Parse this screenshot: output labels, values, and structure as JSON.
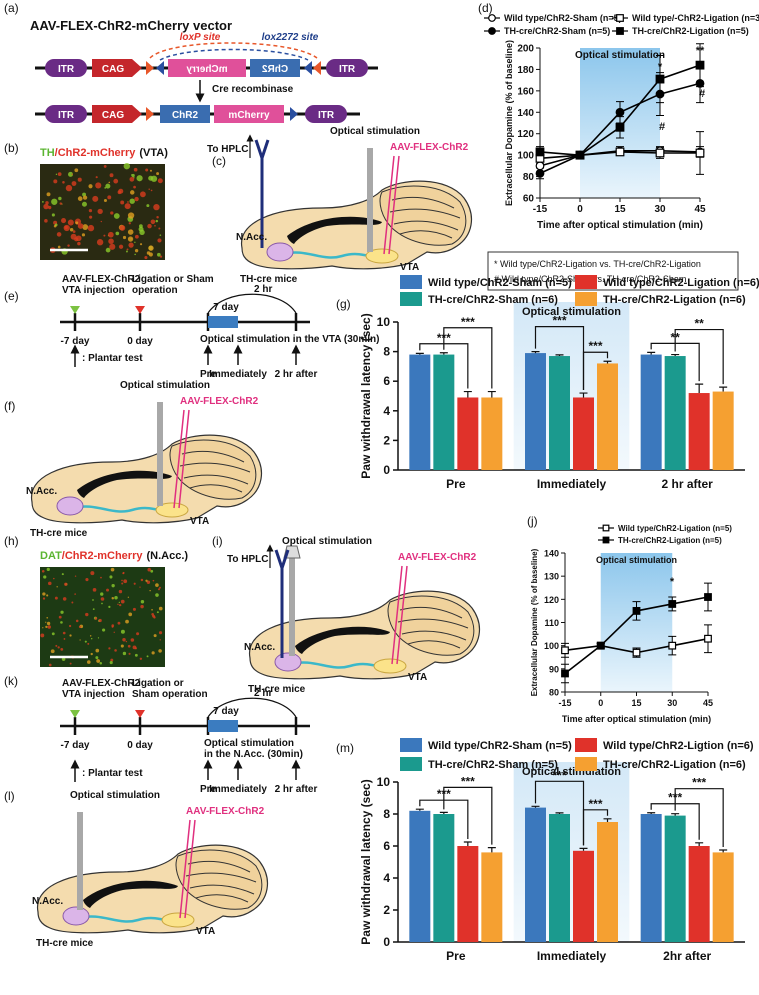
{
  "panel_labels": [
    "(a)",
    "(b)",
    "(c)",
    "(d)",
    "(e)",
    "(f)",
    "(g)",
    "(h)",
    "(i)",
    "(j)",
    "(k)",
    "(l)",
    "(m)"
  ],
  "vector": {
    "title": "AAV-FLEX-ChR2-mCherry vector",
    "itr": "ITR",
    "cag": "CAG",
    "chr2": "ChR2",
    "mcherry": "mCherry",
    "loxp": "loxP site",
    "lox2272": "lox2272 site",
    "cre": "Cre recombinase"
  },
  "images": [
    {
      "title": [
        "TH",
        "/ChR2-mCherry",
        "(VTA)"
      ]
    },
    {
      "title": [
        "DAT",
        "/ChR2-mCherry",
        "(N.Acc.)"
      ]
    }
  ],
  "brains": [
    {
      "hplc": "To HPLC",
      "optical": "Optical stimulation",
      "virus": "AAV-FLEX-ChR2",
      "nacc": "N.Acc.",
      "vta": "VTA",
      "mice": "TH-cre mice"
    },
    {
      "optical": "Optical stimulation",
      "virus": "AAV-FLEX-ChR2",
      "nacc": "N.Acc.",
      "vta": "VTA",
      "mice": "TH-cre mice"
    },
    {
      "hplc": "To HPLC",
      "optical": "Optical stimulation",
      "virus": "AAV-FLEX-ChR2",
      "nacc": "N.Acc.",
      "vta": "VTA",
      "mice": "TH-cre mice"
    },
    {
      "optical": "Optical stimulation",
      "virus": "AAV-FLEX-ChR2",
      "nacc": "N.Acc.",
      "vta": "VTA",
      "mice": "TH-cre mice"
    }
  ],
  "timelines": [
    {
      "injection": [
        "AAV-FLEX-ChR2",
        "VTA injection"
      ],
      "operation": [
        "Ligation or Sham",
        "operation"
      ],
      "day7": "7 day",
      "hr2": "2 hr",
      "start": "-7 day",
      "zero": "0 day",
      "stim": [
        "Optical stimulation in the VTA (30min)"
      ],
      "plantar": ": Plantar test",
      "times": [
        "Pre",
        "Immediately",
        "2 hr after"
      ]
    },
    {
      "injection": [
        "AAV-FLEX-ChR2",
        "VTA injection"
      ],
      "operation": [
        "Ligation or",
        "Sham operation"
      ],
      "day7": "7 day",
      "hr2": "2 hr",
      "start": "-7 day",
      "zero": "0 day",
      "stim": [
        "Optical stimulation",
        "in the N.Acc. (30min)"
      ],
      "plantar": ": Plantar test",
      "times": [
        "Pre",
        "Immediately",
        "2 hr after"
      ]
    }
  ],
  "chart_data": [
    {
      "type": "line",
      "x": [
        -15,
        0,
        15,
        30,
        45
      ],
      "xlim": [
        -15,
        45
      ],
      "xticks": [
        -15,
        0,
        15,
        30,
        45
      ],
      "ylim": [
        60,
        200
      ],
      "yticks": [
        60,
        80,
        100,
        120,
        140,
        160,
        180,
        200
      ],
      "xlabel": "Time after optical stimulation (min)",
      "ylabel": "Extracellular Dopamine (% of baseline)",
      "shade": [
        0,
        30
      ],
      "shade_label": "Optical stimulation",
      "series": [
        {
          "name": "Wild type/ChR2-Sham (n=5)",
          "marker": "circle",
          "filled": false,
          "color": "#000000",
          "values": [
            90,
            100,
            104,
            104,
            103
          ],
          "errors": [
            6,
            1,
            4,
            4,
            5
          ]
        },
        {
          "name": "TH-cre/ChR2-Sham (n=5)",
          "marker": "circle",
          "filled": true,
          "color": "#000000",
          "values": [
            83,
            100,
            140,
            157,
            167
          ],
          "errors": [
            5,
            1,
            10,
            20,
            18
          ]
        },
        {
          "name": "Wild type/-ChR2-Ligation (n=3)",
          "marker": "square",
          "filled": false,
          "color": "#000000",
          "values": [
            97,
            100,
            103,
            102,
            102
          ],
          "errors": [
            5,
            1,
            3,
            5,
            20
          ]
        },
        {
          "name": "TH-cre/ChR2-Ligation (n=5)",
          "marker": "square",
          "filled": true,
          "color": "#000000",
          "values": [
            103,
            100,
            126,
            171,
            184
          ],
          "errors": [
            5,
            1,
            10,
            22,
            20
          ]
        }
      ],
      "annotations": [
        "*",
        "**",
        "#",
        "#"
      ],
      "notes": [
        "* Wild type/ChR2-Ligation vs.  TH-cre/ChR2-Ligation",
        "# Wild type/ChR2-Sham vs.  TH-cre/ChR2-Sham"
      ]
    },
    {
      "type": "bar",
      "categories": [
        "Pre",
        "Immediately",
        "2 hr after"
      ],
      "ylim": [
        0,
        10
      ],
      "yticks": [
        0,
        2,
        4,
        6,
        8,
        10
      ],
      "ylabel": "Paw withdrawal latency (sec)",
      "shade_label": "Optical stimulation",
      "series": [
        {
          "name": "Wild type/ChR2-Sham (n=5)",
          "color": "#3b78bd",
          "values": [
            7.8,
            7.9,
            7.8
          ],
          "errors": [
            0.08,
            0.1,
            0.15
          ]
        },
        {
          "name": "TH-cre/ChR2-Sham (n=6)",
          "color": "#1b9a8e",
          "values": [
            7.8,
            7.7,
            7.7
          ],
          "errors": [
            0.12,
            0.08,
            0.1
          ]
        },
        {
          "name": "Wild type/ChR2-Ligation (n=6)",
          "color": "#e0322a",
          "values": [
            4.9,
            4.9,
            5.2
          ],
          "errors": [
            0.4,
            0.3,
            0.6
          ]
        },
        {
          "name": "TH-cre/ChR2-Ligation (n=6)",
          "color": "#f5a031",
          "values": [
            4.9,
            7.2,
            5.3
          ],
          "errors": [
            0.4,
            0.15,
            0.3
          ]
        }
      ],
      "annotations": [
        "***",
        "***",
        "***",
        "***",
        "**",
        "**"
      ]
    },
    {
      "type": "line",
      "x": [
        -15,
        0,
        15,
        30,
        45
      ],
      "xlim": [
        -15,
        45
      ],
      "xticks": [
        -15,
        0,
        15,
        30,
        45
      ],
      "ylim": [
        80,
        140
      ],
      "yticks": [
        80,
        90,
        100,
        110,
        120,
        130,
        140
      ],
      "xlabel": "Time after optical stimulation (min)",
      "ylabel": "Extracellular Dopamine (% of baseline)",
      "shade": [
        0,
        30
      ],
      "shade_label": "Optical stimulation",
      "series": [
        {
          "name": "Wild type/ChR2-Ligation (n=5)",
          "marker": "square",
          "filled": false,
          "color": "#000000",
          "values": [
            98,
            100,
            97,
            100,
            103
          ],
          "errors": [
            3,
            1,
            2,
            4,
            6
          ]
        },
        {
          "name": "TH-cre/ChR2-Ligation (n=5)",
          "marker": "square",
          "filled": true,
          "color": "#000000",
          "values": [
            88,
            100,
            115,
            118,
            121
          ],
          "errors": [
            4,
            1,
            4,
            3,
            6
          ]
        }
      ],
      "annotations": [
        "*"
      ]
    },
    {
      "type": "bar",
      "categories": [
        "Pre",
        "Immediately",
        "2hr after"
      ],
      "ylim": [
        0,
        10
      ],
      "yticks": [
        0,
        2,
        4,
        6,
        8,
        10
      ],
      "ylabel": "Paw withdrawal latency (sec)",
      "shade_label": "Optical stimulation",
      "series": [
        {
          "name": "Wild type/ChR2-Sham (n=5)",
          "color": "#3b78bd",
          "values": [
            8.2,
            8.4,
            8.0
          ],
          "errors": [
            0.1,
            0.08,
            0.08
          ]
        },
        {
          "name": "TH-cre/ChR2-Sham (n=5)",
          "color": "#1b9a8e",
          "values": [
            8.0,
            8.0,
            7.9
          ],
          "errors": [
            0.1,
            0.07,
            0.12
          ]
        },
        {
          "name": "Wild type/ChR2-Ligtion (n=6)",
          "color": "#e0322a",
          "values": [
            6.0,
            5.7,
            6.0
          ],
          "errors": [
            0.25,
            0.15,
            0.2
          ]
        },
        {
          "name": "TH-cre/ChR2-Ligation (n=6)",
          "color": "#f5a031",
          "values": [
            5.6,
            7.5,
            5.6
          ],
          "errors": [
            0.3,
            0.2,
            0.15
          ]
        }
      ],
      "annotations": [
        "***",
        "***",
        "***",
        "***",
        "***",
        "***"
      ]
    }
  ]
}
